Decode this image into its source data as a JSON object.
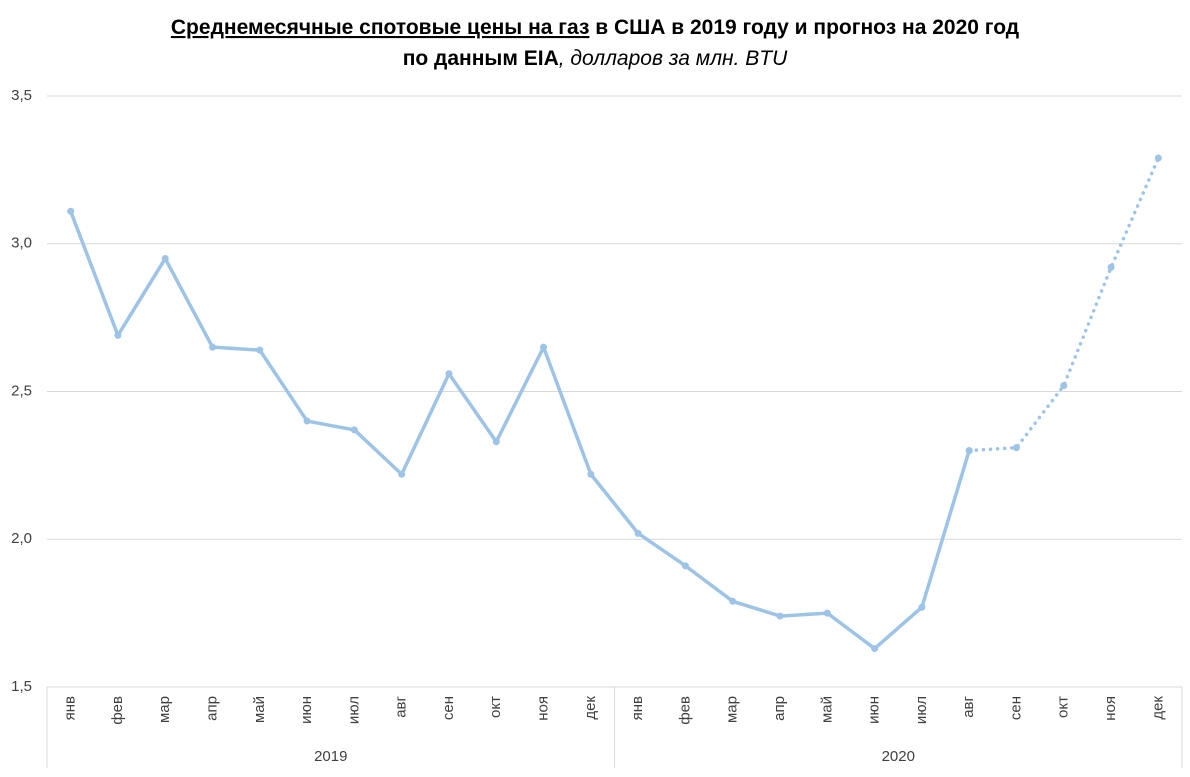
{
  "chart_data": {
    "type": "line",
    "title": [
      [
        {
          "text": "Среднемесячные спотовые цены на газ",
          "style": "bold-underline"
        },
        {
          "text": " в США в 2019 году и прогноз на 2020 год",
          "style": "bold"
        }
      ],
      [
        {
          "text": "по данным EIA",
          "style": "bold"
        },
        {
          "text": ", долларов за млн. BTU",
          "style": "italic"
        }
      ]
    ],
    "categories": [
      "янв",
      "фев",
      "мар",
      "апр",
      "май",
      "июн",
      "июл",
      "авг",
      "сен",
      "окт",
      "ноя",
      "дек",
      "янв",
      "фев",
      "мар",
      "апр",
      "май",
      "июн",
      "июл",
      "авг",
      "сен",
      "окт",
      "ноя",
      "дек"
    ],
    "category_groups": [
      {
        "label": "2019",
        "count": 12
      },
      {
        "label": "2020",
        "count": 12
      }
    ],
    "series": [
      {
        "color": "#9dc3e6",
        "dash": "solid",
        "values": [
          3.11,
          2.69,
          2.95,
          2.65,
          2.64,
          2.4,
          2.37,
          2.22,
          2.56,
          2.33,
          2.65,
          2.22,
          2.02,
          1.91,
          1.79,
          1.74,
          1.75,
          1.63,
          1.77,
          2.3,
          null,
          null,
          null,
          null
        ]
      },
      {
        "color": "#9dc3e6",
        "dash": "dotted",
        "values": [
          null,
          null,
          null,
          null,
          null,
          null,
          null,
          null,
          null,
          null,
          null,
          null,
          null,
          null,
          null,
          null,
          null,
          null,
          null,
          2.3,
          2.31,
          2.52,
          2.92,
          3.29
        ]
      }
    ],
    "ylim": [
      1.5,
      3.5
    ],
    "yticks": [
      {
        "value": 1.5,
        "label": "1,5"
      },
      {
        "value": 2.0,
        "label": "2,0"
      },
      {
        "value": 2.5,
        "label": "2,5"
      },
      {
        "value": 3.0,
        "label": "3,0"
      },
      {
        "value": 3.5,
        "label": "3,5"
      }
    ],
    "grid": true
  }
}
